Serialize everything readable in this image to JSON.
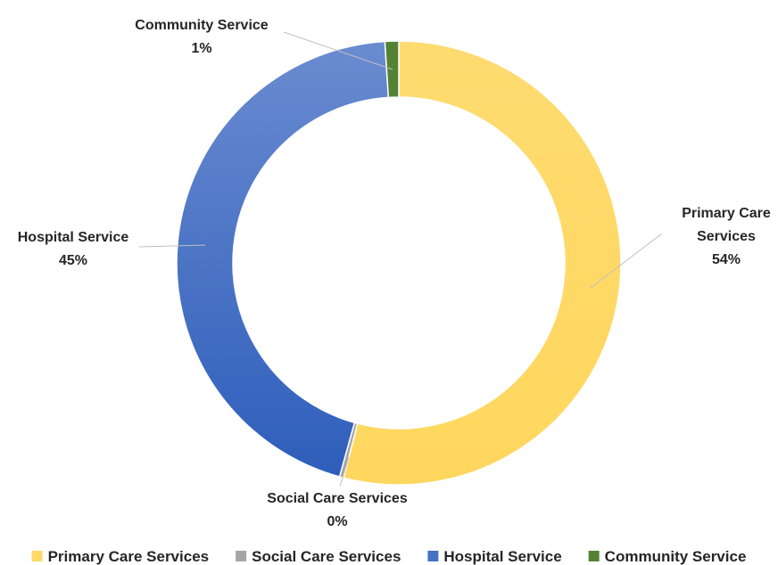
{
  "chart_data": {
    "type": "pie",
    "donut": true,
    "legend_position": "bottom",
    "slices": [
      {
        "label": "Primary Care Services",
        "value": 54,
        "value_label": "54%",
        "data_label_lines": [
          "Primary Care",
          "Services"
        ],
        "color": "#FFD966"
      },
      {
        "label": "Social Care Services",
        "value": 0.3,
        "value_label": "0%",
        "data_label_lines": [
          "Social Care Services"
        ],
        "color": "#A5A5A5"
      },
      {
        "label": "Hospital Service",
        "value": 44.7,
        "value_label": "45%",
        "data_label_lines": [
          "Hospital Service"
        ],
        "color": "#4472C4"
      },
      {
        "label": "Community Service",
        "value": 1,
        "value_label": "1%",
        "data_label_lines": [
          "Community Service"
        ],
        "color": "#548235"
      }
    ]
  }
}
